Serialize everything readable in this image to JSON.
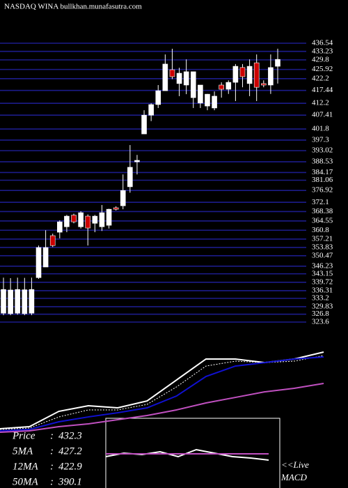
{
  "chart_data": [
    {
      "type": "candlestick",
      "title": "NASDAQ WINA bullkhan.munafasutra.com",
      "colors": {
        "up": "#ffffff",
        "down": "#cc0000",
        "grid": "#1c1c8a"
      },
      "ylim": [
        323.6,
        436.54
      ],
      "yticks": [
        436.54,
        433.23,
        429.8,
        425.92,
        422.2,
        417.44,
        412.2,
        407.41,
        401.8,
        397.3,
        393.02,
        388.53,
        384.17,
        381.06,
        376.92,
        372.1,
        368.38,
        364.55,
        360.8,
        357.21,
        353.83,
        350.47,
        346.23,
        343.15,
        339.72,
        336.31,
        333.2,
        329.83,
        326.8,
        323.6
      ],
      "grid": true,
      "candles": [
        [
          327.2,
          341.6,
          326.4,
          336.8
        ],
        [
          327.0,
          341.4,
          326.4,
          336.6
        ],
        [
          327.2,
          341.6,
          326.6,
          336.8
        ],
        [
          327.0,
          341.5,
          326.4,
          336.7
        ],
        [
          327.2,
          341.6,
          326.4,
          336.8
        ],
        [
          341.6,
          354.6,
          341.1,
          353.8
        ],
        [
          345.9,
          360.8,
          345.9,
          353.8
        ],
        [
          358.6,
          359.4,
          354.0,
          354.6
        ],
        [
          360.0,
          364.8,
          357.5,
          364.2
        ],
        [
          362.2,
          367.0,
          360.0,
          366.5
        ],
        [
          366.9,
          367.5,
          363.6,
          364.2
        ],
        [
          362.2,
          368.5,
          361.5,
          367.9
        ],
        [
          366.5,
          367.2,
          354.6,
          361.7
        ],
        [
          363.6,
          367.0,
          360.0,
          366.5
        ],
        [
          362.2,
          371.0,
          360.5,
          367.9
        ],
        [
          362.8,
          369.5,
          361.5,
          369.3
        ],
        [
          369.9,
          370.5,
          368.8,
          369.3
        ],
        [
          370.7,
          383.4,
          369.3,
          376.9
        ],
        [
          378.4,
          395.3,
          376.0,
          386.3
        ],
        [
          388.5,
          391.3,
          383.4,
          389.1
        ],
        [
          399.8,
          409.4,
          399.8,
          407.4
        ],
        [
          407.4,
          412.2,
          405.0,
          411.7
        ],
        [
          411.7,
          419.6,
          410.3,
          417.3
        ],
        [
          417.3,
          432.0,
          417.3,
          428.1
        ],
        [
          425.8,
          434.3,
          422.0,
          423.0
        ],
        [
          420.2,
          426.6,
          415.1,
          424.4
        ],
        [
          419.6,
          430.0,
          415.9,
          425.0
        ],
        [
          414.5,
          425.0,
          410.3,
          425.0
        ],
        [
          412.3,
          418.7,
          410.3,
          419.6
        ],
        [
          411.1,
          416.0,
          409.4,
          415.9
        ],
        [
          410.3,
          417.0,
          409.4,
          415.1
        ],
        [
          419.6,
          420.7,
          414.5,
          417.9
        ],
        [
          417.9,
          421.5,
          416.0,
          420.7
        ],
        [
          420.7,
          428.1,
          413.1,
          427.2
        ],
        [
          426.7,
          428.1,
          418.7,
          423.0
        ],
        [
          420.2,
          430.0,
          415.1,
          427.2
        ],
        [
          428.6,
          432.0,
          413.1,
          418.7
        ],
        [
          420.2,
          421.5,
          418.7,
          419.6
        ],
        [
          419.6,
          432.0,
          416.0,
          426.7
        ],
        [
          427.2,
          434.3,
          420.2,
          430.0
        ]
      ]
    },
    {
      "type": "line",
      "ylim": [
        300,
        450
      ],
      "label_separator": ":",
      "series": [
        {
          "name": "Price",
          "current": 432.3,
          "color": "#ffffff",
          "dashed": false,
          "values": [
            322.1,
            324.7,
            344.1,
            351.2,
            348.5,
            357.3,
            383.8,
            410.3,
            410.3,
            405.8,
            410.3,
            419.1
          ]
        },
        {
          "name": "5MA",
          "current": 427.2,
          "color": "#ffffff",
          "dashed": true,
          "values": [
            321.2,
            322.9,
            337.0,
            345.9,
            345.9,
            352.9,
            375.0,
            401.4,
            407.6,
            405.8,
            407.6,
            414.7
          ]
        },
        {
          "name": "12MA",
          "current": 422.9,
          "color": "#1010d0",
          "dashed": false,
          "values": [
            319.4,
            321.2,
            330.9,
            337.0,
            342.3,
            348.5,
            363.5,
            388.2,
            401.4,
            405.8,
            410.3,
            412.9
          ]
        },
        {
          "name": "50MA",
          "current": 390.1,
          "color": "#c050c0",
          "dashed": false,
          "values": [
            317.6,
            319.4,
            324.7,
            328.2,
            333.5,
            338.8,
            345.9,
            354.7,
            361.7,
            368.8,
            373.2,
            379.4
          ]
        }
      ]
    },
    {
      "type": "line",
      "ylim": [
        -1,
        1
      ],
      "annotations": [
        "<<Live",
        "MACD"
      ],
      "series": [
        {
          "color": "#ffffff",
          "values": [
            -0.1,
            0,
            -0.04,
            0.04,
            -0.1,
            0.1,
            0,
            -0.1,
            -0.14,
            -0.2
          ]
        },
        {
          "color": "#c050c0",
          "values": [
            -0.02,
            -0.02,
            -0.02,
            -0.02,
            -0.02,
            -0.02,
            -0.02,
            -0.02,
            -0.02,
            -0.02
          ]
        }
      ]
    }
  ]
}
